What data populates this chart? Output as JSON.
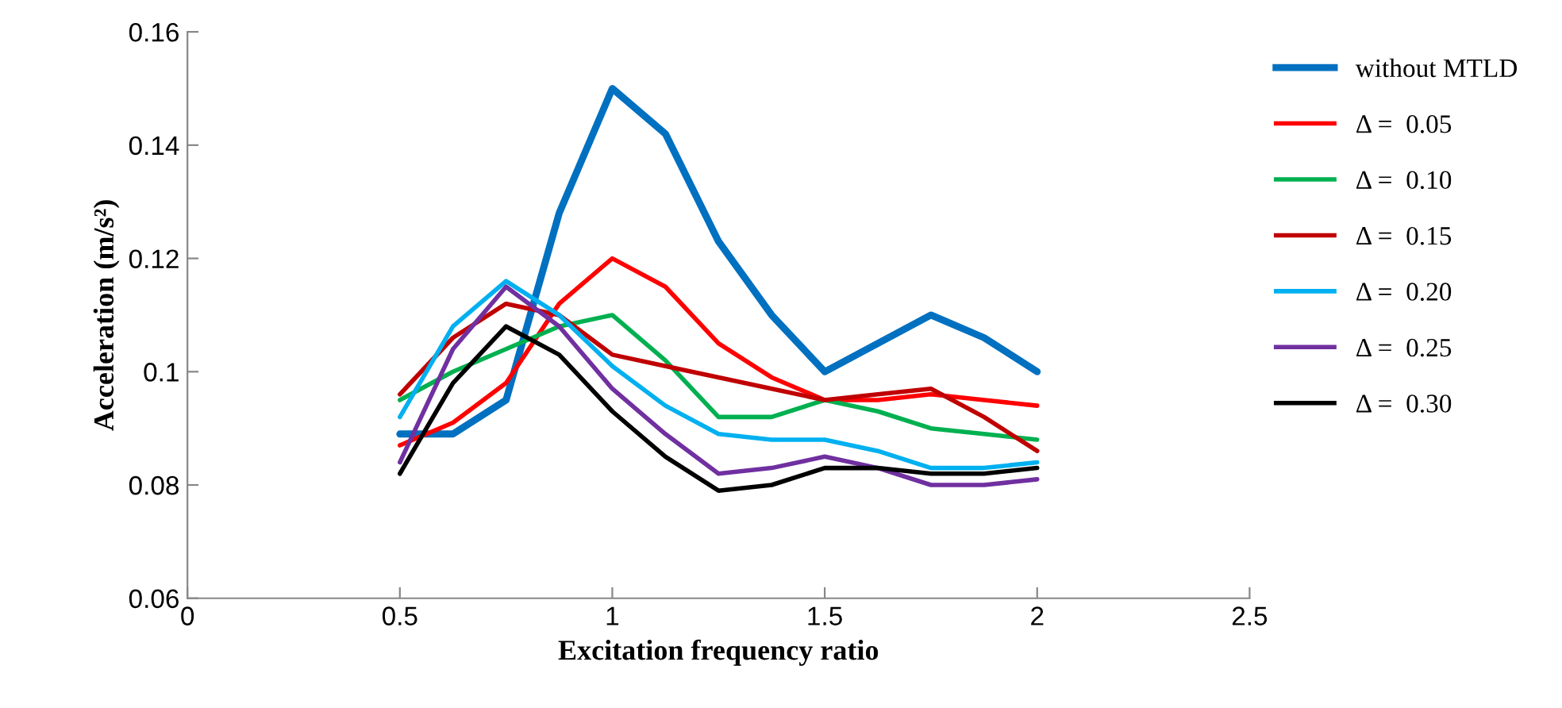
{
  "chart_data": {
    "type": "line",
    "xlabel": "Excitation frequency ratio",
    "ylabel": "Acceleration (m/s²)",
    "x": [
      0.5,
      0.625,
      0.75,
      0.875,
      1.0,
      1.125,
      1.25,
      1.375,
      1.5,
      1.625,
      1.75,
      1.875,
      2.0
    ],
    "series": [
      {
        "name": "without MTLD",
        "color": "#0070c0",
        "values": [
          0.089,
          0.089,
          0.095,
          0.128,
          0.15,
          0.142,
          0.123,
          0.11,
          0.1,
          0.105,
          0.11,
          0.106,
          0.1
        ]
      },
      {
        "name": "Δ =  0.05",
        "color": "#ff0000",
        "values": [
          0.087,
          0.091,
          0.098,
          0.112,
          0.12,
          0.115,
          0.105,
          0.099,
          0.095,
          0.095,
          0.096,
          0.095,
          0.094
        ]
      },
      {
        "name": "Δ =  0.10",
        "color": "#00b050",
        "values": [
          0.095,
          0.1,
          0.104,
          0.108,
          0.11,
          0.102,
          0.092,
          0.092,
          0.095,
          0.093,
          0.09,
          0.089,
          0.088
        ]
      },
      {
        "name": "Δ =  0.15",
        "color": "#c00000",
        "values": [
          0.096,
          0.106,
          0.112,
          0.11,
          0.103,
          0.101,
          0.099,
          0.097,
          0.095,
          0.096,
          0.097,
          0.092,
          0.086
        ]
      },
      {
        "name": "Δ =  0.20",
        "color": "#00b0f0",
        "values": [
          0.092,
          0.108,
          0.116,
          0.11,
          0.101,
          0.094,
          0.089,
          0.088,
          0.088,
          0.086,
          0.083,
          0.083,
          0.084
        ]
      },
      {
        "name": "Δ =  0.25",
        "color": "#7030a0",
        "values": [
          0.084,
          0.104,
          0.115,
          0.108,
          0.097,
          0.089,
          0.082,
          0.083,
          0.085,
          0.083,
          0.08,
          0.08,
          0.081
        ]
      },
      {
        "name": "Δ =  0.30",
        "color": "#000000",
        "values": [
          0.082,
          0.098,
          0.108,
          0.103,
          0.093,
          0.085,
          0.079,
          0.08,
          0.083,
          0.083,
          0.082,
          0.082,
          0.083
        ]
      }
    ],
    "xlim": [
      0,
      2.5
    ],
    "xticks": [
      0,
      0.5,
      1,
      1.5,
      2,
      2.5
    ],
    "ylim": [
      0.06,
      0.16
    ],
    "yticks": [
      0.06,
      0.08,
      {
        "value": 0.1,
        "label": "0.1"
      },
      0.12,
      0.14,
      0.16
    ],
    "grid": false,
    "legend": "right",
    "marker": "none",
    "line_style": "solid"
  }
}
